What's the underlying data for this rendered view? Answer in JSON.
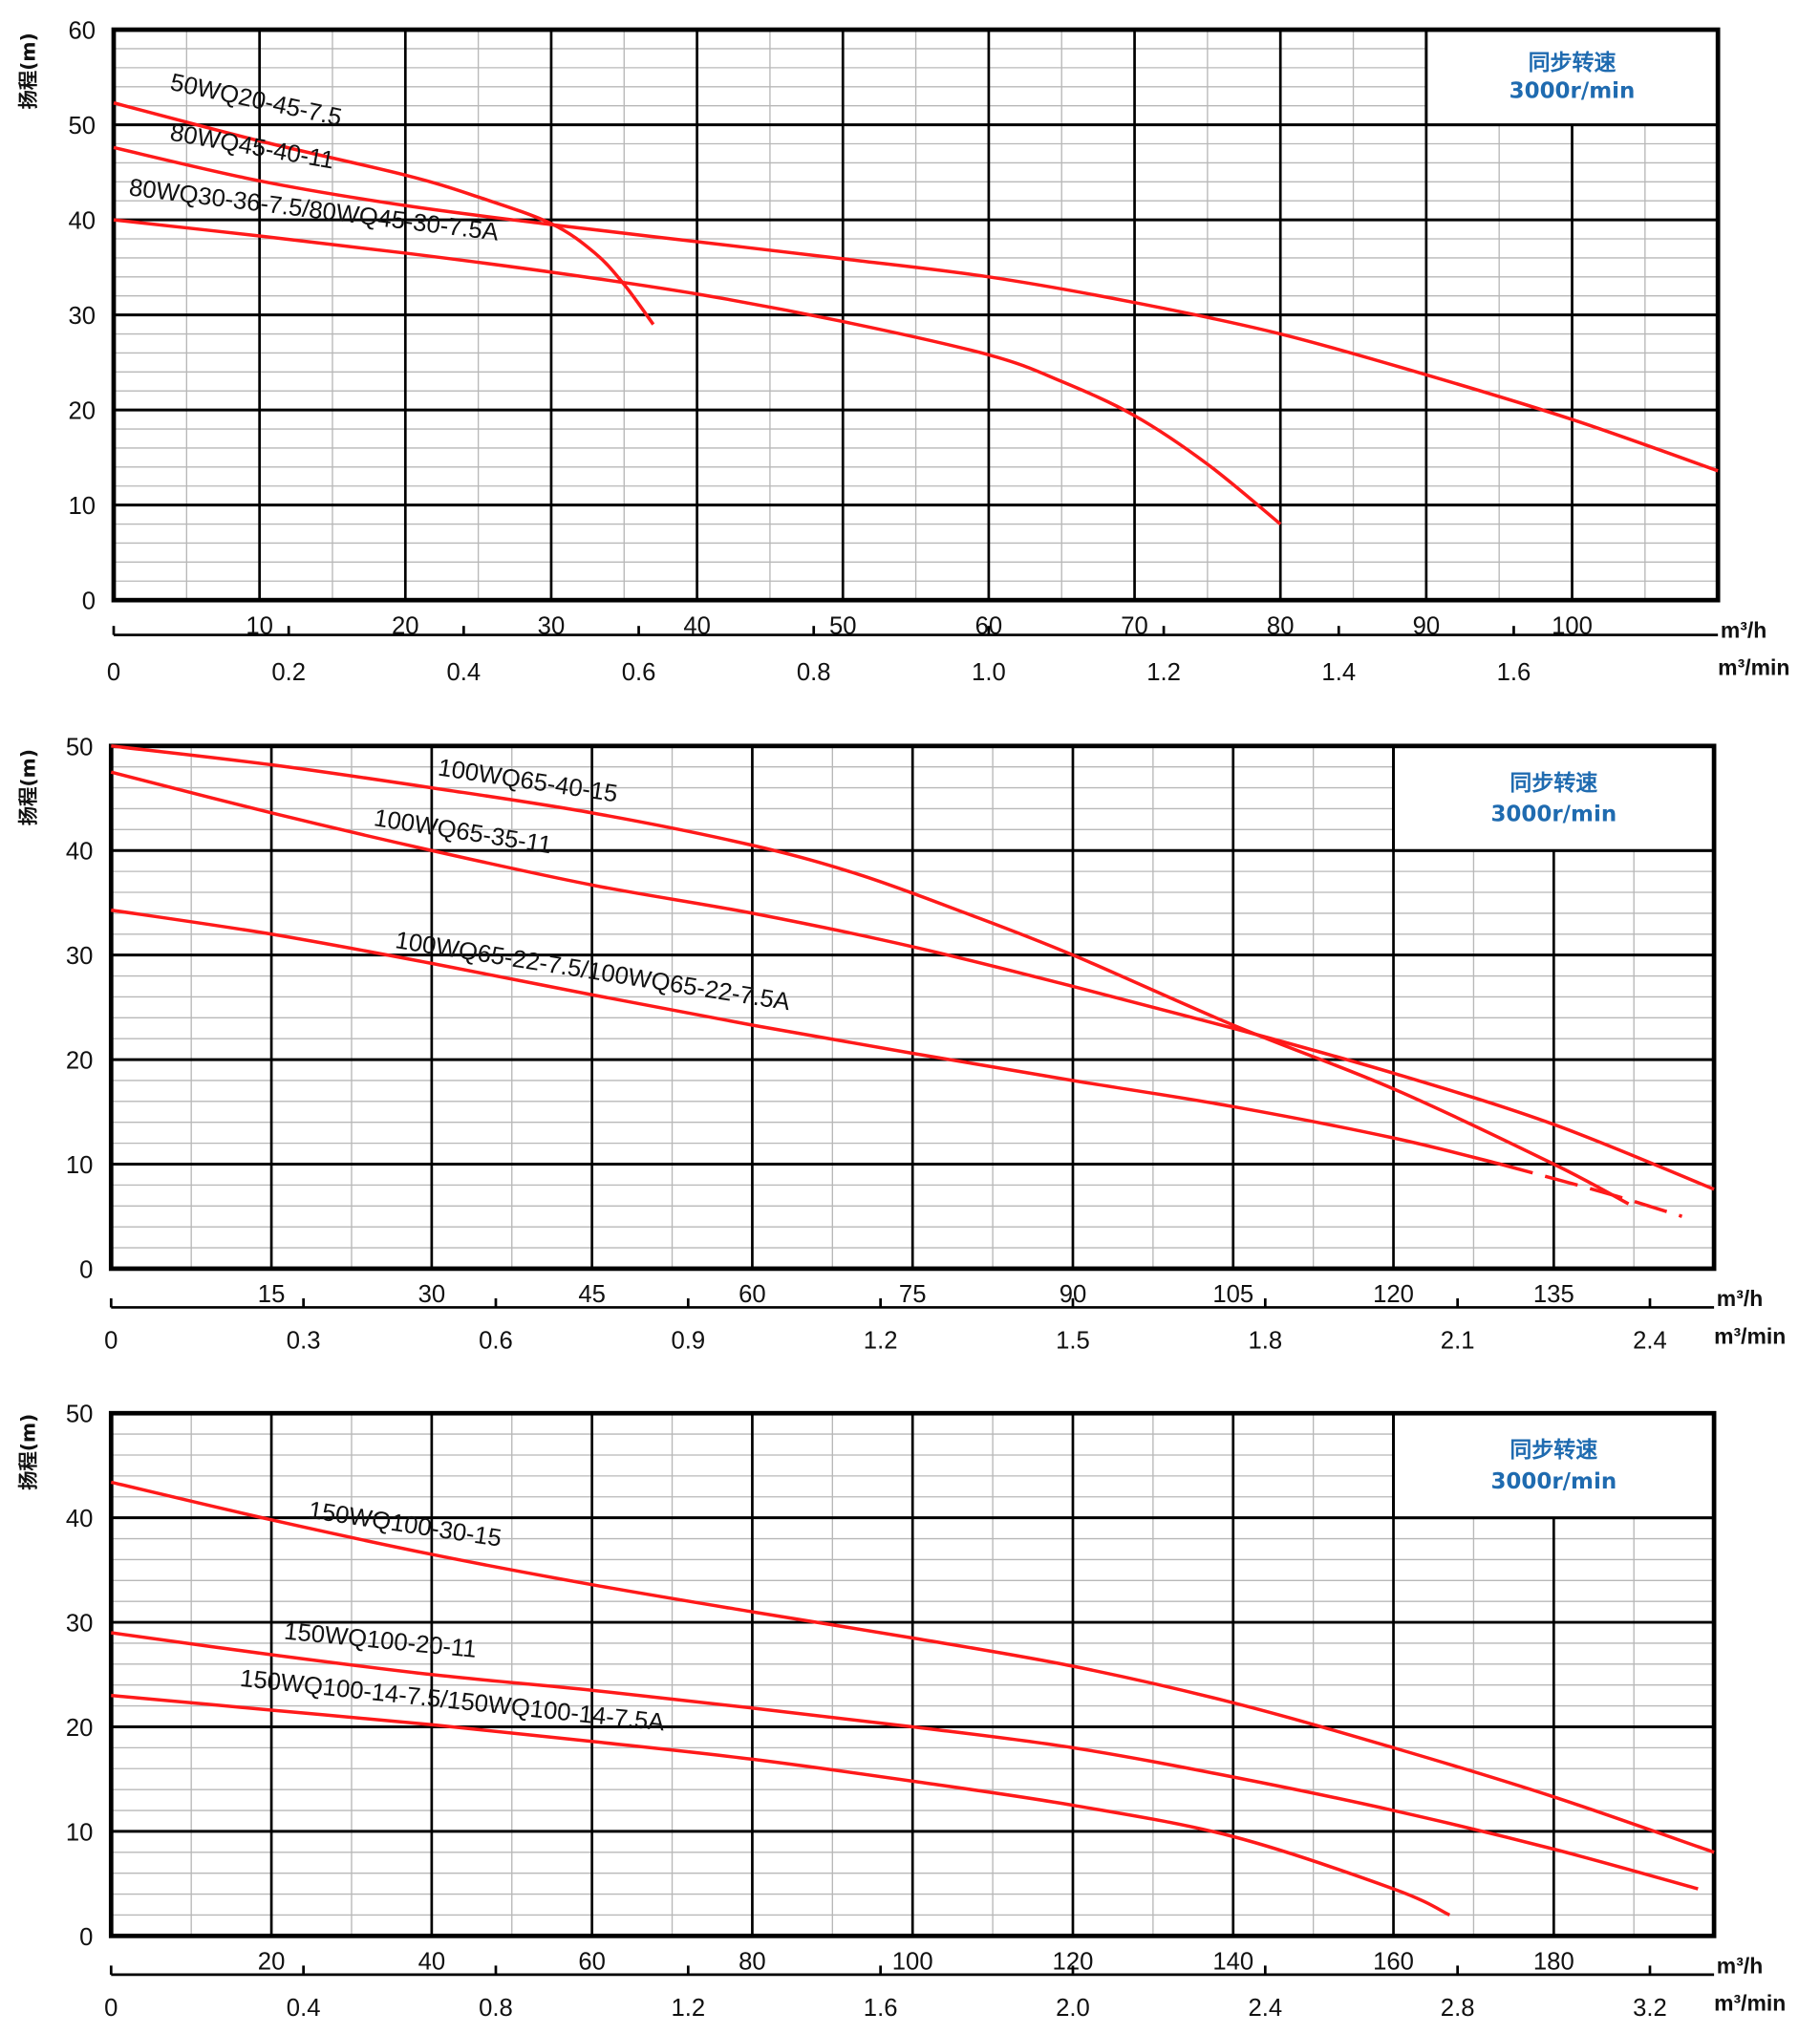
{
  "colors": {
    "curve": "#ff1a1a",
    "major_grid": "#000000",
    "minor_grid": "#b8b8b8",
    "speed_text": "#1f6bb0"
  },
  "chart_data": [
    {
      "type": "line",
      "ylabel": "扬程(m)",
      "xunit_primary": "m³/h",
      "xunit_secondary": "m³/min",
      "xlim": [
        0,
        110
      ],
      "ylim": [
        0,
        60
      ],
      "grid": true,
      "x_ticks": [
        10,
        20,
        30,
        40,
        50,
        60,
        70,
        80,
        90,
        100
      ],
      "y_ticks": [
        0,
        10,
        20,
        30,
        40,
        50,
        60
      ],
      "x2_ticks": [
        "0",
        "0.2",
        "0.4",
        "0.6",
        "0.8",
        "1.0",
        "1.2",
        "1.4",
        "1.6"
      ],
      "speed_box": {
        "title": "同步转速",
        "speed": "3000r/min",
        "x_range": [
          90,
          110
        ],
        "y_range": [
          50,
          60
        ]
      },
      "series": [
        {
          "name": "50WQ20-45-7.5",
          "points": [
            [
              0,
              52.3
            ],
            [
              10,
              48.3
            ],
            [
              20,
              44.7
            ],
            [
              25,
              42.4
            ],
            [
              30,
              39.6
            ],
            [
              33,
              36.5
            ],
            [
              35,
              33.2
            ],
            [
              37,
              29
            ]
          ]
        },
        {
          "name": "80WQ45-40-11",
          "points": [
            [
              0,
              47.6
            ],
            [
              10,
              44.1
            ],
            [
              20,
              41.5
            ],
            [
              30,
              39.5
            ],
            [
              40,
              37.7
            ],
            [
              50,
              35.9
            ],
            [
              60,
              34
            ],
            [
              70,
              31.3
            ],
            [
              80,
              28
            ],
            [
              90,
              23.7
            ],
            [
              100,
              19
            ],
            [
              110,
              13.6
            ]
          ]
        },
        {
          "name": "80WQ30-36-7.5/80WQ45-30-7.5A",
          "points": [
            [
              0,
              40
            ],
            [
              10,
              38.3
            ],
            [
              20,
              36.5
            ],
            [
              30,
              34.5
            ],
            [
              40,
              32.2
            ],
            [
              50,
              29.3
            ],
            [
              60,
              25.8
            ],
            [
              65,
              23
            ],
            [
              70,
              19.4
            ],
            [
              75,
              14.3
            ],
            [
              80,
              8
            ]
          ]
        }
      ]
    },
    {
      "type": "line",
      "ylabel": "扬程(m)",
      "xunit_primary": "m³/h",
      "xunit_secondary": "m³/min",
      "xlim": [
        0,
        150
      ],
      "ylim": [
        0,
        50
      ],
      "grid": true,
      "x_ticks": [
        15,
        30,
        45,
        60,
        75,
        90,
        105,
        120,
        135
      ],
      "y_ticks": [
        0,
        10,
        20,
        30,
        40,
        50
      ],
      "x2_ticks": [
        "0",
        "0.3",
        "0.6",
        "0.9",
        "1.2",
        "1.5",
        "1.8",
        "2.1",
        "2.4"
      ],
      "speed_box": {
        "title": "同步转速",
        "speed": "3000r/min",
        "x_range": [
          120,
          150
        ],
        "y_range": [
          40,
          50
        ]
      },
      "series": [
        {
          "name": "100WQ65-40-15",
          "points": [
            [
              0,
              50
            ],
            [
              15,
              48.2
            ],
            [
              30,
              46
            ],
            [
              45,
              43.6
            ],
            [
              60,
              40.5
            ],
            [
              70,
              37.7
            ],
            [
              80,
              34
            ],
            [
              90,
              30
            ],
            [
              105,
              23.3
            ],
            [
              120,
              17.2
            ],
            [
              135,
              10
            ],
            [
              142,
              6.2
            ]
          ]
        },
        {
          "name": "100WQ65-35-11",
          "points": [
            [
              0,
              47.5
            ],
            [
              15,
              43.6
            ],
            [
              30,
              40
            ],
            [
              45,
              36.7
            ],
            [
              60,
              34
            ],
            [
              75,
              30.8
            ],
            [
              90,
              27
            ],
            [
              105,
              23
            ],
            [
              120,
              18.7
            ],
            [
              135,
              13.8
            ],
            [
              150,
              7.6
            ]
          ]
        },
        {
          "name": "100WQ65-22-7.5/100WQ65-22-7.5A",
          "dashed_from": 130,
          "points": [
            [
              0,
              34.3
            ],
            [
              15,
              32
            ],
            [
              30,
              29.2
            ],
            [
              45,
              26.2
            ],
            [
              60,
              23.3
            ],
            [
              75,
              20.6
            ],
            [
              90,
              18
            ],
            [
              105,
              15.5
            ],
            [
              120,
              12.5
            ],
            [
              130,
              10
            ],
            [
              140,
              7.2
            ],
            [
              147,
              5
            ]
          ]
        }
      ]
    },
    {
      "type": "line",
      "ylabel": "扬程(m)",
      "xunit_primary": "m³/h",
      "xunit_secondary": "m³/min",
      "xlim": [
        0,
        200
      ],
      "ylim": [
        0,
        50
      ],
      "grid": true,
      "x_ticks": [
        20,
        40,
        60,
        80,
        100,
        120,
        140,
        160,
        180
      ],
      "y_ticks": [
        0,
        10,
        20,
        30,
        40,
        50
      ],
      "x2_ticks": [
        "0",
        "0.4",
        "0.8",
        "1.2",
        "1.6",
        "2.0",
        "2.4",
        "2.8",
        "3.2"
      ],
      "speed_box": {
        "title": "同步转速",
        "speed": "3000r/min",
        "x_range": [
          160,
          200
        ],
        "y_range": [
          40,
          50
        ]
      },
      "series": [
        {
          "name": "150WQ100-30-15",
          "points": [
            [
              0,
              43.4
            ],
            [
              20,
              39.8
            ],
            [
              40,
              36.5
            ],
            [
              60,
              33.6
            ],
            [
              80,
              31
            ],
            [
              100,
              28.5
            ],
            [
              120,
              25.8
            ],
            [
              140,
              22.3
            ],
            [
              160,
              18
            ],
            [
              180,
              13.3
            ],
            [
              200,
              8
            ]
          ]
        },
        {
          "name": "150WQ100-20-11",
          "points": [
            [
              0,
              29
            ],
            [
              20,
              26.9
            ],
            [
              40,
              25
            ],
            [
              60,
              23.5
            ],
            [
              80,
              21.8
            ],
            [
              100,
              20
            ],
            [
              120,
              18
            ],
            [
              140,
              15.2
            ],
            [
              160,
              12
            ],
            [
              180,
              8.3
            ],
            [
              198,
              4.5
            ]
          ]
        },
        {
          "name": "150WQ100-14-7.5/150WQ100-14-7.5A",
          "points": [
            [
              0,
              23
            ],
            [
              20,
              21.6
            ],
            [
              40,
              20.2
            ],
            [
              60,
              18.6
            ],
            [
              80,
              16.9
            ],
            [
              100,
              14.8
            ],
            [
              120,
              12.5
            ],
            [
              140,
              9.5
            ],
            [
              160,
              4.5
            ],
            [
              167,
              2
            ]
          ]
        }
      ]
    }
  ]
}
